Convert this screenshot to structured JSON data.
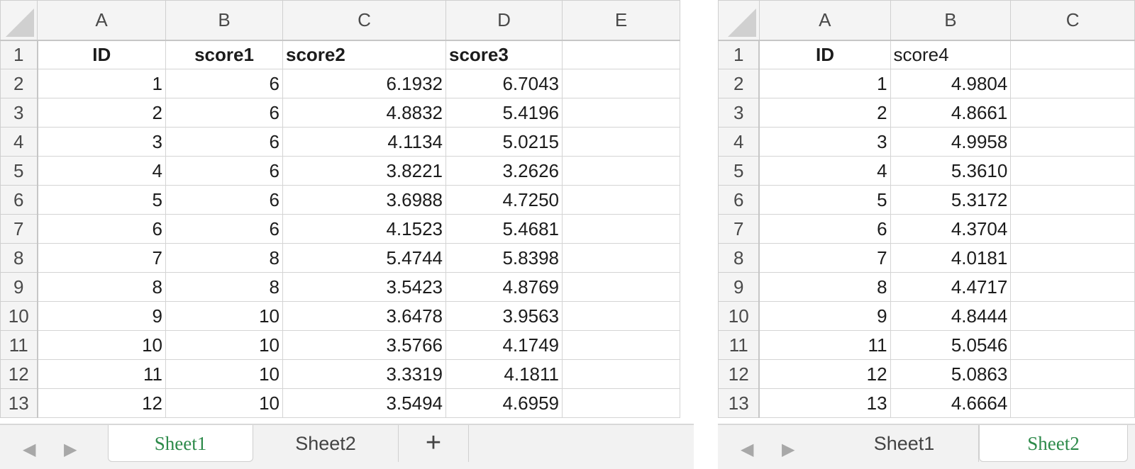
{
  "left": {
    "columns": [
      "A",
      "B",
      "C",
      "D",
      "E"
    ],
    "row_numbers": [
      "1",
      "2",
      "3",
      "4",
      "5",
      "6",
      "7",
      "8",
      "9",
      "10",
      "11",
      "12",
      "13"
    ],
    "headers": [
      "ID",
      "score1",
      "score2",
      "score3",
      ""
    ],
    "rows": [
      [
        "1",
        "6",
        "6.1932",
        "6.7043",
        ""
      ],
      [
        "2",
        "6",
        "4.8832",
        "5.4196",
        ""
      ],
      [
        "3",
        "6",
        "4.1134",
        "5.0215",
        ""
      ],
      [
        "4",
        "6",
        "3.8221",
        "3.2626",
        ""
      ],
      [
        "5",
        "6",
        "3.6988",
        "4.7250",
        ""
      ],
      [
        "6",
        "6",
        "4.1523",
        "5.4681",
        ""
      ],
      [
        "7",
        "8",
        "5.4744",
        "5.8398",
        ""
      ],
      [
        "8",
        "8",
        "3.5423",
        "4.8769",
        ""
      ],
      [
        "9",
        "10",
        "3.6478",
        "3.9563",
        ""
      ],
      [
        "10",
        "10",
        "3.5766",
        "4.1749",
        ""
      ],
      [
        "11",
        "10",
        "3.3319",
        "4.1811",
        ""
      ],
      [
        "12",
        "10",
        "3.5494",
        "4.6959",
        ""
      ]
    ],
    "tabs": [
      "Sheet1",
      "Sheet2"
    ],
    "active_tab": "Sheet1",
    "add_tab_label": "+"
  },
  "right": {
    "columns": [
      "A",
      "B",
      "C"
    ],
    "row_numbers": [
      "1",
      "2",
      "3",
      "4",
      "5",
      "6",
      "7",
      "8",
      "9",
      "10",
      "11",
      "12",
      "13"
    ],
    "headers": [
      "ID",
      "score4",
      ""
    ],
    "rows": [
      [
        "1",
        "4.9804",
        ""
      ],
      [
        "2",
        "4.8661",
        ""
      ],
      [
        "3",
        "4.9958",
        ""
      ],
      [
        "4",
        "5.3610",
        ""
      ],
      [
        "5",
        "5.3172",
        ""
      ],
      [
        "6",
        "4.3704",
        ""
      ],
      [
        "7",
        "4.0181",
        ""
      ],
      [
        "8",
        "4.4717",
        ""
      ],
      [
        "9",
        "4.8444",
        ""
      ],
      [
        "11",
        "5.0546",
        ""
      ],
      [
        "12",
        "5.0863",
        ""
      ],
      [
        "13",
        "4.6664",
        ""
      ]
    ],
    "tabs": [
      "Sheet1",
      "Sheet2"
    ],
    "active_tab": "Sheet2"
  },
  "icons": {
    "prev": "chevron-left-icon",
    "next": "chevron-right-icon",
    "add": "plus-icon"
  },
  "colors": {
    "active_tab_text": "#2d8a4a",
    "header_bg": "#f4f4f4",
    "grid_line": "#d4d4d4"
  }
}
